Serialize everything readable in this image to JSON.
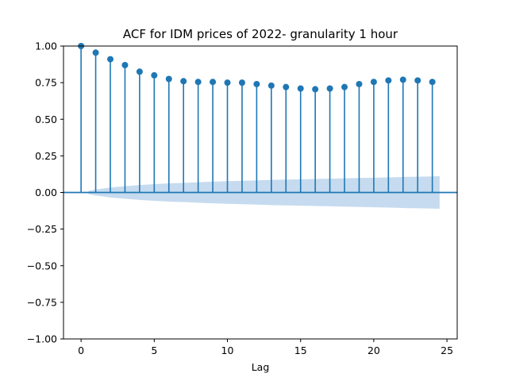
{
  "chart_data": {
    "type": "stem",
    "title": "ACF for IDM prices of 2022- granularity 1 hour",
    "xlabel": "Lag",
    "ylabel": "",
    "xlim": [
      -1.2,
      25.7
    ],
    "ylim": [
      -1.0,
      1.0
    ],
    "xticks": [
      0,
      5,
      10,
      15,
      20,
      25
    ],
    "xtick_labels": [
      "0",
      "5",
      "10",
      "15",
      "20",
      "25"
    ],
    "yticks": [
      -1.0,
      -0.75,
      -0.5,
      -0.25,
      0.0,
      0.25,
      0.5,
      0.75,
      1.0
    ],
    "ytick_labels": [
      "−1.00",
      "−0.75",
      "−0.50",
      "−0.25",
      "0.00",
      "0.25",
      "0.50",
      "0.75",
      "1.00"
    ],
    "grid": false,
    "lags": [
      0,
      1,
      2,
      3,
      4,
      5,
      6,
      7,
      8,
      9,
      10,
      11,
      12,
      13,
      14,
      15,
      16,
      17,
      18,
      19,
      20,
      21,
      22,
      23,
      24
    ],
    "values": [
      1.0,
      0.955,
      0.91,
      0.87,
      0.825,
      0.8,
      0.775,
      0.76,
      0.755,
      0.755,
      0.75,
      0.75,
      0.74,
      0.73,
      0.72,
      0.71,
      0.705,
      0.71,
      0.72,
      0.74,
      0.755,
      0.765,
      0.77,
      0.765,
      0.755
    ],
    "confidence_band": {
      "lags": [
        0.5,
        1,
        2,
        3,
        4,
        5,
        6,
        7,
        8,
        9,
        10,
        11,
        12,
        13,
        14,
        15,
        16,
        17,
        18,
        19,
        20,
        21,
        22,
        23,
        24,
        24.5
      ],
      "upper": [
        0.011,
        0.02,
        0.034,
        0.043,
        0.051,
        0.057,
        0.062,
        0.066,
        0.07,
        0.074,
        0.077,
        0.08,
        0.083,
        0.086,
        0.088,
        0.09,
        0.092,
        0.094,
        0.097,
        0.099,
        0.101,
        0.103,
        0.106,
        0.108,
        0.11,
        0.111
      ]
    },
    "colors": {
      "stem": "#1f77b4",
      "band": "#c6dbef",
      "axis": "#000000",
      "zero_line": "#1f77b4"
    }
  }
}
